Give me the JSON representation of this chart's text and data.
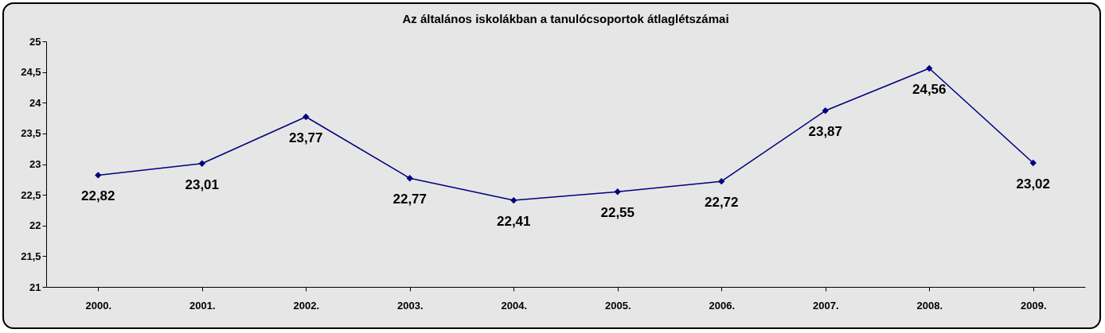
{
  "chart_data": {
    "type": "line",
    "title": "Az általános iskolákban a tanulócsoportok átlaglétszámai",
    "categories": [
      "2000.",
      "2001.",
      "2002.",
      "2003.",
      "2004.",
      "2005.",
      "2006.",
      "2007.",
      "2008.",
      "2009."
    ],
    "series": [
      {
        "color": "#000080",
        "values": [
          22.82,
          23.01,
          23.77,
          22.77,
          22.41,
          22.55,
          22.72,
          23.87,
          24.56,
          23.02
        ],
        "value_labels": [
          "22,82",
          "23,01",
          "23,77",
          "22,77",
          "22,41",
          "22,55",
          "22,72",
          "23,87",
          "24,56",
          "23,02"
        ]
      }
    ],
    "ylim": [
      21,
      25
    ],
    "yticks": [
      21,
      {
        "value": 21.5,
        "label": "21,5"
      },
      22,
      {
        "value": 22.5,
        "label": "22,5"
      },
      23,
      {
        "value": 23.5,
        "label": "23,5"
      },
      24,
      {
        "value": 24.5,
        "label": "24,5"
      },
      25
    ],
    "grid": false,
    "marker": "diamond",
    "line_style": "solid"
  }
}
